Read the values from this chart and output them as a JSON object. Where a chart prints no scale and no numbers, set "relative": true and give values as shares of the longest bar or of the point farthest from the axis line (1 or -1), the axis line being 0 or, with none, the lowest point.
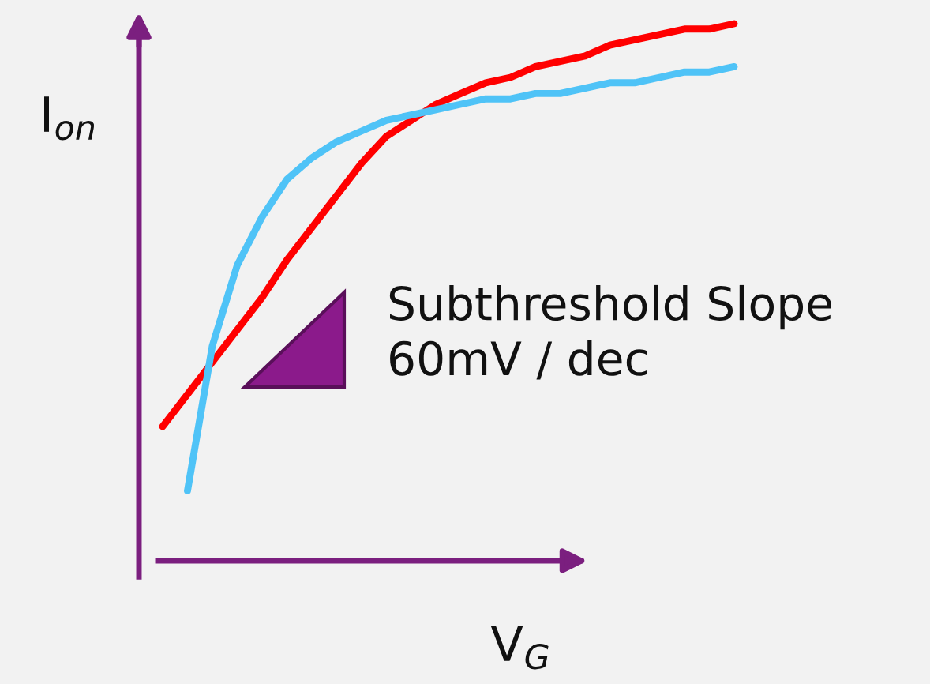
{
  "chart_data": {
    "type": "line",
    "relative": true,
    "xlabel": "V$_{G}$",
    "ylabel": "I$_{on}$",
    "annotations": [
      "Subthreshold Slope\n60mV / dec"
    ],
    "categories": [
      null,
      null,
      null,
      null,
      null,
      null,
      null,
      null,
      null,
      null,
      null,
      null,
      null,
      null,
      null,
      null,
      null,
      null,
      null,
      null,
      null,
      null,
      null,
      null
    ],
    "series": [
      {
        "color": "#ff0000",
        "values": [
          0.25,
          0.31,
          0.37,
          0.43,
          0.49,
          0.56,
          0.62,
          0.68,
          0.74,
          0.79,
          0.82,
          0.85,
          0.87,
          0.89,
          0.9,
          0.92,
          0.93,
          0.94,
          0.96,
          0.97,
          0.98,
          0.99,
          0.99,
          1.0
        ]
      },
      {
        "color": "#4fc3f7",
        "values": [
          null,
          0.13,
          0.4,
          0.55,
          0.64,
          0.71,
          0.75,
          0.78,
          0.8,
          0.82,
          0.83,
          0.84,
          0.85,
          0.86,
          0.86,
          0.87,
          0.87,
          0.88,
          0.89,
          0.89,
          0.9,
          0.91,
          0.91,
          0.92
        ]
      }
    ]
  }
}
